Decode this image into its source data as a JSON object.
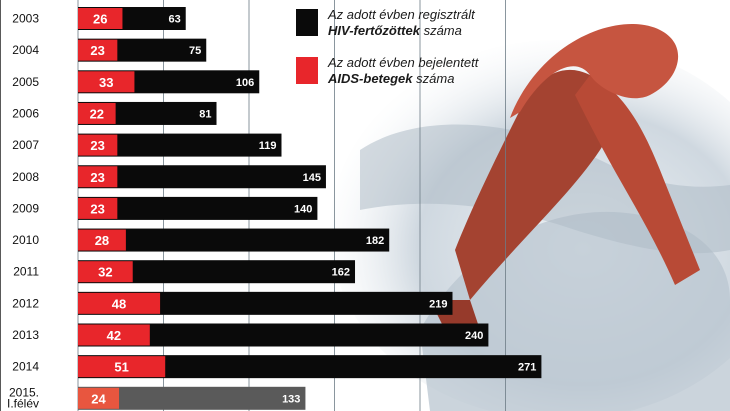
{
  "chart_data": {
    "type": "bar",
    "orientation": "horizontal",
    "categories": [
      "2003",
      "2004",
      "2005",
      "2006",
      "2007",
      "2008",
      "2009",
      "2010",
      "2011",
      "2012",
      "2013",
      "2014",
      "2015. I.félév"
    ],
    "category_lines": [
      [
        "2003"
      ],
      [
        "2004"
      ],
      [
        "2005"
      ],
      [
        "2006"
      ],
      [
        "2007"
      ],
      [
        "2008"
      ],
      [
        "2009"
      ],
      [
        "2010"
      ],
      [
        "2011"
      ],
      [
        "2012"
      ],
      [
        "2013"
      ],
      [
        "2014"
      ],
      [
        "2015.",
        "I.félév"
      ]
    ],
    "series": [
      {
        "name": "Az adott évben regisztrált HIV-fertőzöttek száma",
        "color": "#0a0a0a",
        "values": [
          63,
          75,
          106,
          81,
          119,
          145,
          140,
          182,
          162,
          219,
          240,
          271,
          133
        ]
      },
      {
        "name": "Az adott évben bejelentett AIDS-betegek száma",
        "color": "#e8262b",
        "values": [
          26,
          23,
          33,
          22,
          23,
          23,
          23,
          28,
          32,
          48,
          42,
          51,
          24
        ]
      }
    ],
    "highlight": {
      "category_index": 12,
      "colors": [
        "#5a5a5a",
        "#e8563f"
      ]
    },
    "grid": true
  },
  "legend": {
    "hiv": {
      "line1": "Az adott évben regisztrált",
      "bold": "HIV-fertőzöttek",
      "rest": " száma",
      "color": "#0a0a0a"
    },
    "aids": {
      "line1": "Az adott évben bejelentett",
      "bold": "AIDS-betegek",
      "rest": " száma",
      "color": "#e8262b"
    }
  },
  "background": {
    "colors": {
      "skin": "#c9d3dc",
      "ribbon": "#b84a36"
    }
  }
}
